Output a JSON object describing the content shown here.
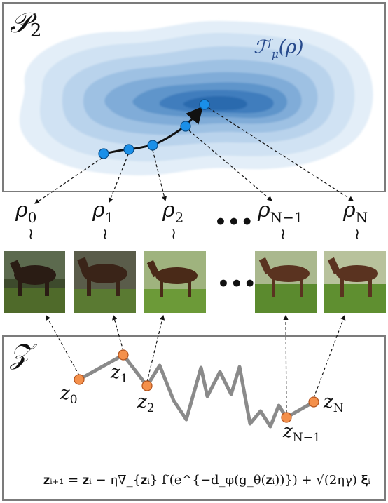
{
  "top_panel": {
    "space_label": "𝒫",
    "space_sub": "2",
    "functional_main": "ℱ",
    "functional_sup": "f",
    "functional_sub": "μ",
    "functional_arg": "(ρ)"
  },
  "distributions": [
    {
      "symbol": "ρ",
      "sub": "0"
    },
    {
      "symbol": "ρ",
      "sub": "1"
    },
    {
      "symbol": "ρ",
      "sub": "2"
    },
    {
      "symbol": "ρ",
      "sub": "N−1"
    },
    {
      "symbol": "ρ",
      "sub": "N"
    }
  ],
  "tilde": "≀",
  "ellipsis": "•••",
  "bottom_panel": {
    "space_label": "𝒵"
  },
  "latents": [
    {
      "symbol": "z",
      "sub": "0"
    },
    {
      "symbol": "z",
      "sub": "1"
    },
    {
      "symbol": "z",
      "sub": "2"
    },
    {
      "symbol": "z",
      "sub": "N−1"
    },
    {
      "symbol": "z",
      "sub": "N"
    }
  ],
  "update_equation": "𝐳ᵢ₊₁ = 𝐳ᵢ − η∇_{𝐳ᵢ} f′(e^{−d_φ(g_θ(𝐳ᵢ))}) + √(2ηγ) 𝛏ᵢ",
  "colors": {
    "contour_dark": "#1f5fa8",
    "contour_light": "#dbe9f5",
    "blue_node": "#1a8fe8",
    "orange_node": "#f4904b",
    "walk_path": "#8a8a8a",
    "functional_text": "#274a8c"
  }
}
